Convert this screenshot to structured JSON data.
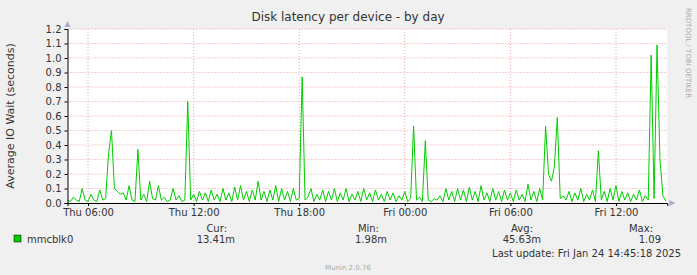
{
  "chart_data": {
    "type": "line",
    "title": "Disk latency per device - by day",
    "y_label": "Average IO Wait (seconds)",
    "x": [
      290,
      300,
      310,
      320,
      330,
      340,
      350,
      360,
      370,
      380,
      390,
      400,
      410,
      420,
      430,
      440,
      450,
      460,
      470,
      480,
      490,
      500,
      510,
      520,
      530,
      540,
      550,
      560,
      570,
      580,
      590,
      600,
      610,
      620,
      630,
      640,
      650,
      660,
      670,
      680,
      690,
      700,
      710,
      720,
      730,
      740,
      750,
      760,
      770,
      780,
      790,
      800,
      810,
      820,
      830,
      840,
      850,
      860,
      870,
      880,
      890,
      900,
      910,
      920,
      930,
      940,
      950,
      960,
      970,
      980,
      990,
      1000,
      1010,
      1020,
      1030,
      1040,
      1050,
      1060,
      1070,
      1080,
      1090,
      1100,
      1110,
      1120,
      1130,
      1140,
      1150,
      1160,
      1170,
      1180,
      1190,
      1200,
      1210,
      1220,
      1230,
      1240,
      1250,
      1260,
      1270,
      1280,
      1290,
      1300,
      1310,
      1320,
      1330,
      1340,
      1350,
      1360,
      1370,
      1380,
      1390,
      1400,
      1410,
      1420,
      1430,
      1440,
      1450,
      1460,
      1470,
      1480,
      1490,
      1500,
      1510,
      1520,
      1530,
      1540,
      1550,
      1560,
      1570,
      1580,
      1590,
      1600,
      1610,
      1620,
      1630,
      1640,
      1650,
      1660,
      1670,
      1680,
      1690,
      1700,
      1710,
      1720,
      1730,
      1740,
      1750,
      1760,
      1770,
      1780,
      1790,
      1800,
      1810,
      1820,
      1830,
      1840,
      1850,
      1860,
      1870,
      1880,
      1890,
      1900,
      1910,
      1920,
      1930,
      1940,
      1950,
      1960,
      1970,
      1980,
      1990,
      2000,
      2010,
      2020,
      2030,
      2040,
      2050,
      2060,
      2070,
      2080,
      2090,
      2100,
      2110,
      2120,
      2130,
      2140,
      2150,
      2160,
      2170,
      2180,
      2190,
      2200,
      2210,
      2220,
      2230,
      2240,
      2250,
      2260,
      2270,
      2280,
      2290,
      2300,
      2310,
      2320,
      2330
    ],
    "series": [
      {
        "name": "mmcblk0",
        "color": "#00cc00",
        "values": [
          0.02,
          0.01,
          0.04,
          0.02,
          0.01,
          0.1,
          0.02,
          0.01,
          0.06,
          0.02,
          0.01,
          0.09,
          0.02,
          0.03,
          0.34,
          0.5,
          0.1,
          0.08,
          0.06,
          0.07,
          0.02,
          0.12,
          0.02,
          0.01,
          0.37,
          0.02,
          0.06,
          0.01,
          0.15,
          0.03,
          0.02,
          0.12,
          0.02,
          0.04,
          0.01,
          0.02,
          0.1,
          0.02,
          0.05,
          0.01,
          0.02,
          0.7,
          0.02,
          0.06,
          0.01,
          0.08,
          0.02,
          0.07,
          0.01,
          0.09,
          0.02,
          0.06,
          0.01,
          0.1,
          0.02,
          0.07,
          0.01,
          0.11,
          0.02,
          0.12,
          0.02,
          0.08,
          0.01,
          0.09,
          0.02,
          0.15,
          0.02,
          0.08,
          0.01,
          0.09,
          0.02,
          0.12,
          0.01,
          0.1,
          0.02,
          0.08,
          0.01,
          0.1,
          0.02,
          0.03,
          0.87,
          0.02,
          0.04,
          0.1,
          0.01,
          0.06,
          0.02,
          0.09,
          0.01,
          0.08,
          0.02,
          0.1,
          0.01,
          0.07,
          0.02,
          0.1,
          0.01,
          0.06,
          0.02,
          0.08,
          0.01,
          0.1,
          0.02,
          0.07,
          0.01,
          0.09,
          0.02,
          0.06,
          0.01,
          0.08,
          0.02,
          0.07,
          0.01,
          0.05,
          0.02,
          0.08,
          0.01,
          0.03,
          0.53,
          0.02,
          0.04,
          0.01,
          0.43,
          0.02,
          0.01,
          0.03,
          0.02,
          0.05,
          0.01,
          0.1,
          0.02,
          0.08,
          0.01,
          0.1,
          0.02,
          0.09,
          0.01,
          0.11,
          0.02,
          0.08,
          0.01,
          0.12,
          0.02,
          0.07,
          0.01,
          0.1,
          0.02,
          0.08,
          0.01,
          0.09,
          0.02,
          0.07,
          0.01,
          0.09,
          0.02,
          0.06,
          0.01,
          0.13,
          0.02,
          0.08,
          0.01,
          0.1,
          0.02,
          0.53,
          0.2,
          0.15,
          0.25,
          0.59,
          0.03,
          0.05,
          0.02,
          0.08,
          0.01,
          0.07,
          0.02,
          0.1,
          0.01,
          0.06,
          0.02,
          0.09,
          0.01,
          0.36,
          0.02,
          0.08,
          0.01,
          0.1,
          0.02,
          0.12,
          0.01,
          0.08,
          0.02,
          0.07,
          0.01,
          0.06,
          0.02,
          0.09,
          0.01,
          0.05,
          0.02,
          1.02,
          0.03,
          1.09,
          0.3,
          0.05,
          0.013
        ],
        "stats": [
          {
            "value": 0.01341,
            "label": "13.41m"
          },
          {
            "value": 0.00198,
            "label": "1.98m"
          },
          {
            "value": 0.04563,
            "label": "45.63m"
          },
          1.09
        ]
      }
    ],
    "stat_names": [
      "Cur:",
      "Min:",
      "Avg:",
      "Max:"
    ],
    "xlim": [
      290,
      2335
    ],
    "xticks": [
      {
        "value": 360,
        "label": "Thu 06:00"
      },
      {
        "value": 720,
        "label": "Thu 12:00"
      },
      {
        "value": 1080,
        "label": "Thu 18:00"
      },
      {
        "value": 1440,
        "label": "Fri 00:00"
      },
      {
        "value": 1800,
        "label": "Fri 06:00"
      },
      {
        "value": 2160,
        "label": "Fri 12:00"
      }
    ],
    "ylim": [
      0,
      1.2
    ],
    "yticks": [
      {
        "value": 0,
        "label": "0.0"
      },
      0.1,
      0.2,
      0.3,
      0.4,
      0.5,
      0.6,
      0.7,
      0.8,
      0.9,
      {
        "value": 1,
        "label": "1.0"
      },
      1.1,
      1.2
    ],
    "grid": true,
    "last_update": "Last update: Fri Jan 24 14:45:18 2025",
    "footer": "Munin 2.0.76",
    "watermark": "RRDTOOL / TOBI OETIKER"
  }
}
